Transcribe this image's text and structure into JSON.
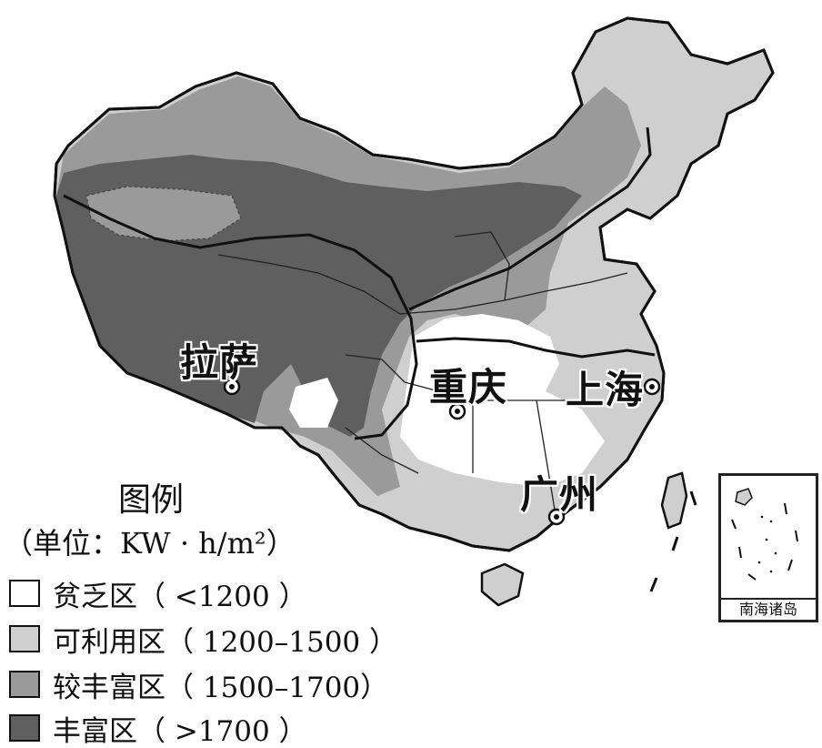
{
  "cities": [
    {
      "name": "拉萨"
    },
    {
      "name": "重庆"
    },
    {
      "name": "上海"
    },
    {
      "name": "广州"
    }
  ],
  "legend": {
    "title": "图例",
    "unit": "（单位：KW · h/m²）",
    "items": [
      {
        "label": "贫乏区（ <1200 ）",
        "color": "#ffffff"
      },
      {
        "label": "可利用区（ 1200–1500 ）",
        "color": "#cfcfcf"
      },
      {
        "label": "较丰富区（  1500–1700）",
        "color": "#9a9a9a"
      },
      {
        "label": "丰富区（ >1700 ）",
        "color": "#5f5f5f"
      }
    ]
  },
  "inset": {
    "label": "南海诸岛"
  },
  "colors": {
    "border": "#111111",
    "background": "#ffffff"
  }
}
